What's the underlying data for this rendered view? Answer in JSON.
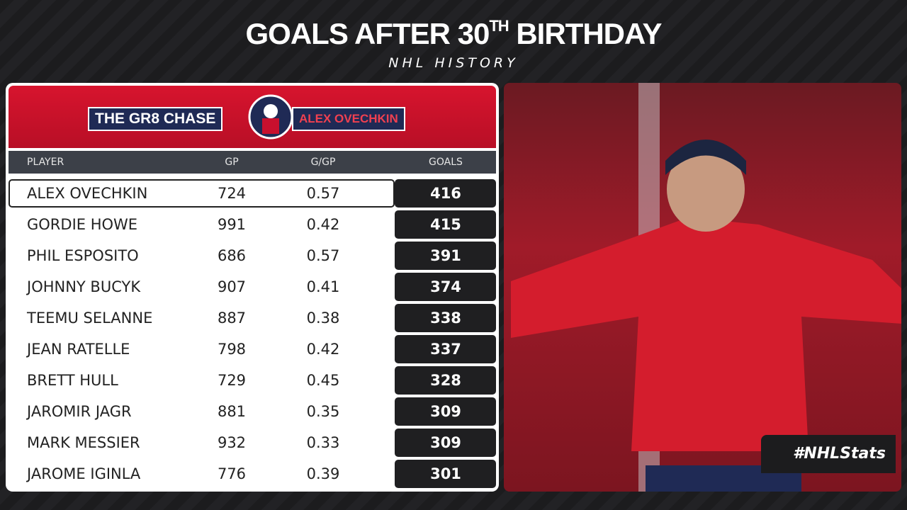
{
  "header": {
    "title_main": "GOALS AFTER 30",
    "title_sup": "TH",
    "title_end": "BIRTHDAY",
    "subtitle": "NHL HISTORY"
  },
  "banner": {
    "left": "THE GR8 CHASE",
    "right": "ALEX OVECHKIN"
  },
  "table": {
    "columns": [
      "PLAYER",
      "GP",
      "G/GP",
      "GOALS"
    ],
    "rows": [
      [
        "ALEX OVECHKIN",
        724,
        0.57,
        416
      ],
      [
        "GORDIE HOWE",
        991,
        0.42,
        415
      ],
      [
        "PHIL ESPOSITO",
        686,
        0.57,
        391
      ],
      [
        "JOHNNY BUCYK",
        907,
        0.41,
        374
      ],
      [
        "TEEMU SELANNE",
        887,
        0.38,
        338
      ],
      [
        "JEAN RATELLE",
        798,
        0.42,
        337
      ],
      [
        "BRETT HULL",
        729,
        0.45,
        328
      ],
      [
        "JAROMIR JAGR",
        881,
        0.35,
        309
      ],
      [
        "MARK MESSIER",
        932,
        0.33,
        309
      ],
      [
        "JAROME IGINLA",
        776,
        0.39,
        301
      ]
    ]
  },
  "footer": {
    "tag": "#NHLStats"
  }
}
